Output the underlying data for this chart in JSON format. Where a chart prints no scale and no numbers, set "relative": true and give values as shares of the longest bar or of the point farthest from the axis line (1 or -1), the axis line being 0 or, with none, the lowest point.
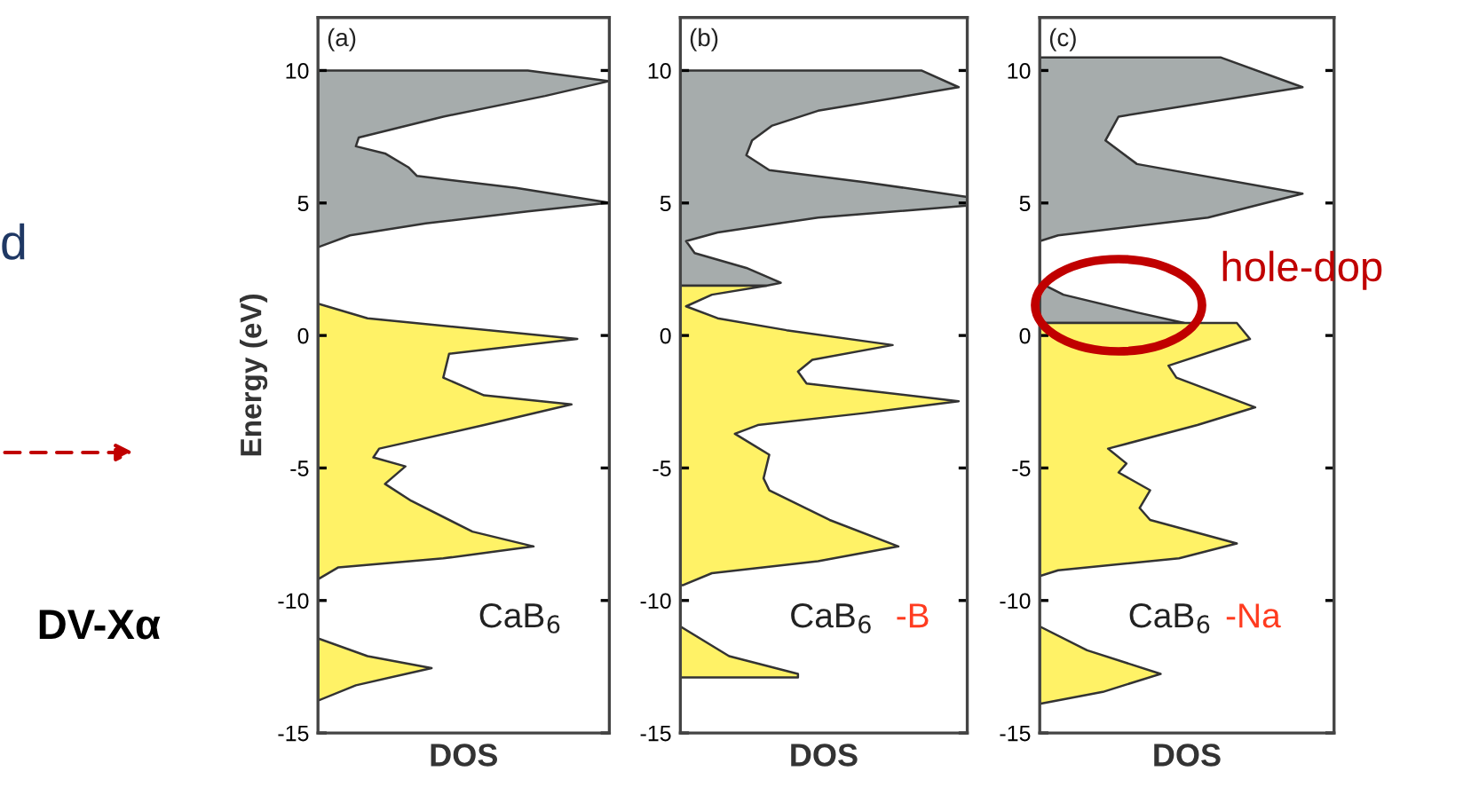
{
  "chart_data": [
    {
      "type": "area",
      "orientation": "horizontal",
      "relative": true,
      "ylim": [
        -15,
        12
      ],
      "yticks": [
        -15,
        -10,
        -5,
        0,
        5,
        10
      ],
      "xlabel": "DOS",
      "ylabel": "Energy (eV)",
      "grid": false,
      "legend": false,
      "series": [
        {
          "color": "#a6acac",
          "x": [
            10,
            9.6,
            9.04,
            8.26,
            7.47,
            7.14,
            6.87,
            6.35,
            6.02,
            5.57,
            5.01,
            4.68,
            4.23,
            3.78,
            3.33
          ],
          "values": [
            0.72,
            1.0,
            0.78,
            0.43,
            0.14,
            0.13,
            0.23,
            0.31,
            0.34,
            0.68,
            1.0,
            0.72,
            0.37,
            0.11,
            0
          ]
        },
        {
          "color": "#fff266",
          "x": [
            1.2,
            0.65,
            -0.13,
            -0.69,
            -1.59,
            -2.26,
            -2.6,
            -3.38,
            -4.27,
            -4.6,
            -4.94,
            -5.6,
            -6.24,
            -7.4,
            -7.96,
            -8.41,
            -8.75,
            -9.2,
            null,
            -11.43,
            -12.1,
            -12.55,
            -13.2,
            -13.78
          ],
          "values": [
            0,
            0.17,
            0.89,
            0.45,
            0.43,
            0.57,
            0.87,
            0.57,
            0.21,
            0.19,
            0.3,
            0.23,
            0.32,
            0.53,
            0.74,
            0.43,
            0.07,
            0,
            null,
            0,
            0.17,
            0.39,
            0.13,
            0
          ]
        }
      ],
      "annotations": [
        "(a)",
        "CaB$_{6}$",
        "d",
        "DV-Xα"
      ]
    },
    {
      "type": "area",
      "orientation": "horizontal",
      "relative": true,
      "ylim": [
        -15,
        12
      ],
      "yticks": [
        -15,
        -10,
        -5,
        0,
        5,
        10
      ],
      "xlabel": "DOS",
      "grid": false,
      "legend": false,
      "series": [
        {
          "color": "#a6acac",
          "x": [
            10,
            9.37,
            8.48,
            7.92,
            7.36,
            6.8,
            6.24,
            5.79,
            5.23,
            4.9,
            4.45,
            3.89,
            3.56,
            3.11,
            2.55,
            1.99,
            1.88
          ],
          "values": [
            0.84,
            0.97,
            0.48,
            0.32,
            0.25,
            0.23,
            0.31,
            0.64,
            1.0,
            1.0,
            0.48,
            0.13,
            0.02,
            0.05,
            0.23,
            0.35,
            0.3
          ]
        },
        {
          "color": "#fff266",
          "x": [
            1.88,
            1.54,
            1.1,
            0.65,
            0.2,
            -0.36,
            -0.92,
            -1.36,
            -1.81,
            -2.48,
            -2.93,
            -3.38,
            -3.71,
            -4.5,
            -5.39,
            -5.84,
            -6.96,
            -7.96,
            -8.52,
            -8.97,
            -9.42,
            null,
            -10.98,
            -12.1,
            -12.77,
            -12.9
          ],
          "values": [
            0.3,
            0.11,
            0.02,
            0.13,
            0.37,
            0.74,
            0.46,
            0.41,
            0.44,
            0.97,
            0.64,
            0.27,
            0.19,
            0.31,
            0.29,
            0.31,
            0.52,
            0.76,
            0.48,
            0.11,
            0.01,
            null,
            0,
            0.17,
            0.41,
            0.41
          ]
        }
      ],
      "annotations": [
        "(b)",
        "CaB$_{6}$",
        "-B"
      ]
    },
    {
      "type": "area",
      "orientation": "horizontal",
      "relative": true,
      "ylim": [
        -15,
        12
      ],
      "yticks": [
        -15,
        -10,
        -5,
        0,
        5,
        10
      ],
      "xlabel": "DOS",
      "grid": false,
      "legend": false,
      "series": [
        {
          "color": "#a6acac",
          "x": [
            10.49,
            9.37,
            8.26,
            7.36,
            6.47,
            5.35,
            4.45,
            3.78,
            3.56,
            1.99,
            1.54,
            0.87,
            0.47
          ],
          "values": [
            0.69,
            1.0,
            0.3,
            0.25,
            0.37,
            1.0,
            0.64,
            0.07,
            0,
            0,
            0.09,
            0.37,
            0.55
          ]
        },
        {
          "color": "#fff266",
          "x": [
            0.47,
            -0.13,
            -1.14,
            -1.59,
            -2.71,
            -3.38,
            -4.27,
            -4.83,
            -5.17,
            -5.84,
            -6.51,
            -6.96,
            -7.85,
            -8.41,
            -8.86,
            -9.08,
            null,
            -10.98,
            -11.88,
            -12.77,
            -13.45,
            -13.9
          ],
          "values": [
            0.75,
            0.8,
            0.49,
            0.52,
            0.82,
            0.6,
            0.26,
            0.33,
            0.3,
            0.42,
            0.38,
            0.42,
            0.75,
            0.53,
            0.07,
            0,
            null,
            0,
            0.18,
            0.46,
            0.24,
            0
          ]
        }
      ],
      "annotations": [
        "(c)",
        "CaB$_{6}$",
        "-Na",
        "hole-dop"
      ]
    }
  ]
}
